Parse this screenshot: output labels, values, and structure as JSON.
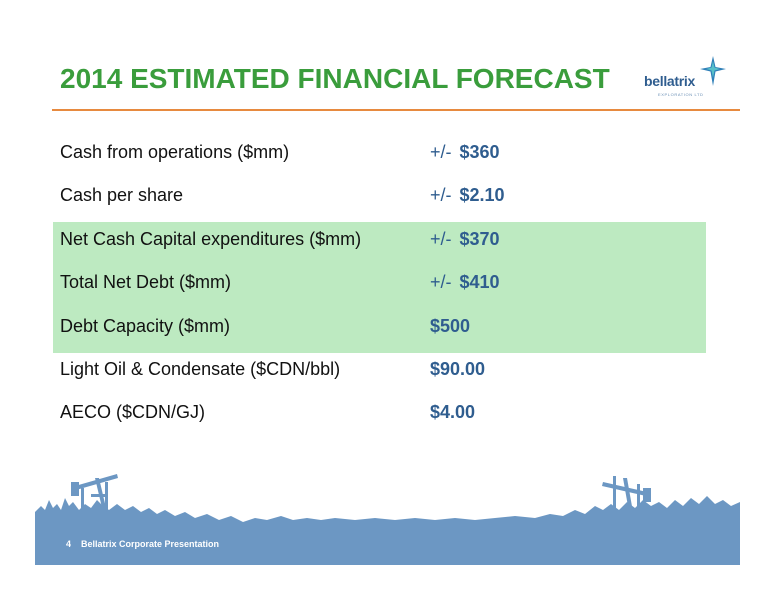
{
  "slide": {
    "title": "2014 ESTIMATED FINANCIAL FORECAST"
  },
  "logo": {
    "wordmark": "bellatrix",
    "subtitle": "EXPLORATION LTD",
    "icon": "star-icon"
  },
  "forecast": {
    "rows": [
      {
        "label": "Cash from operations ($mm)",
        "prefix": "+/-",
        "amount": "$360",
        "highlighted": false
      },
      {
        "label": "Cash per share",
        "prefix": "+/-",
        "amount": "$2.10",
        "highlighted": false
      },
      {
        "label": "Net Cash Capital expenditures ($mm)",
        "prefix": "+/-",
        "amount": "$370",
        "highlighted": true
      },
      {
        "label": "Total Net Debt ($mm)",
        "prefix": "+/-",
        "amount": "$410",
        "highlighted": true
      },
      {
        "label": "Debt Capacity ($mm)",
        "prefix": "",
        "amount": "$500",
        "highlighted": true
      },
      {
        "label": "Light Oil & Condensate ($CDN/bbl)",
        "prefix": "",
        "amount": "$90.00",
        "highlighted": false
      },
      {
        "label": "AECO ($CDN/GJ)",
        "prefix": "",
        "amount": "$4.00",
        "highlighted": false
      }
    ]
  },
  "footer": {
    "page_number": "4",
    "text": "Bellatrix Corporate Presentation"
  },
  "colors": {
    "title": "#3a9d3c",
    "rule": "#e78a3f",
    "highlight": "#bdeac1",
    "value": "#2f5d8f",
    "footer": "#6c97c3"
  }
}
